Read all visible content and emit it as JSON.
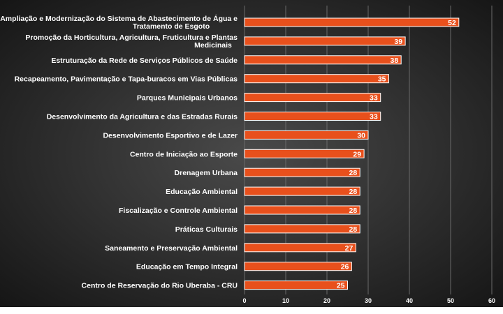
{
  "chart_data": {
    "type": "bar",
    "orientation": "horizontal",
    "categories": [
      [
        "Ampliação e Modernização do Sistema de Abastecimento de Água e",
        "Tratamento de Esgoto"
      ],
      [
        "Promoção da Horticultura, Agricultura, Fruticultura e Plantas",
        "Medicinais"
      ],
      [
        "Estruturação da Rede de Serviços Públicos de Saúde"
      ],
      [
        "Recapeamento, Pavimentação e Tapa-buracos em Vias Públicas"
      ],
      [
        "Parques Municipais Urbanos"
      ],
      [
        "Desenvolvimento da Agricultura e das Estradas Rurais"
      ],
      [
        "Desenvolvimento Esportivo e de Lazer"
      ],
      [
        "Centro de Iniciação ao Esporte"
      ],
      [
        "Drenagem Urbana"
      ],
      [
        "Educação Ambiental"
      ],
      [
        "Fiscalização e Controle Ambiental"
      ],
      [
        "Práticas Culturais"
      ],
      [
        "Saneamento e Preservação Ambiental"
      ],
      [
        "Educação em Tempo Integral"
      ],
      [
        "Centro de Reservação do Rio Uberaba - CRU"
      ]
    ],
    "values": [
      52,
      39,
      38,
      35,
      33,
      33,
      30,
      29,
      28,
      28,
      28,
      28,
      27,
      26,
      25
    ],
    "xlim": [
      0,
      60
    ],
    "x_ticks": [
      0,
      10,
      20,
      30,
      40,
      50,
      60
    ],
    "grid": "vertical",
    "data_labels": true,
    "colors": {
      "background_center": "#4a4a4a",
      "background_edge": "#161616",
      "bar": "#e8501c",
      "bar_stroke": "#ffffff",
      "text": "#ffffff",
      "grid": "#6a6a6a"
    }
  }
}
